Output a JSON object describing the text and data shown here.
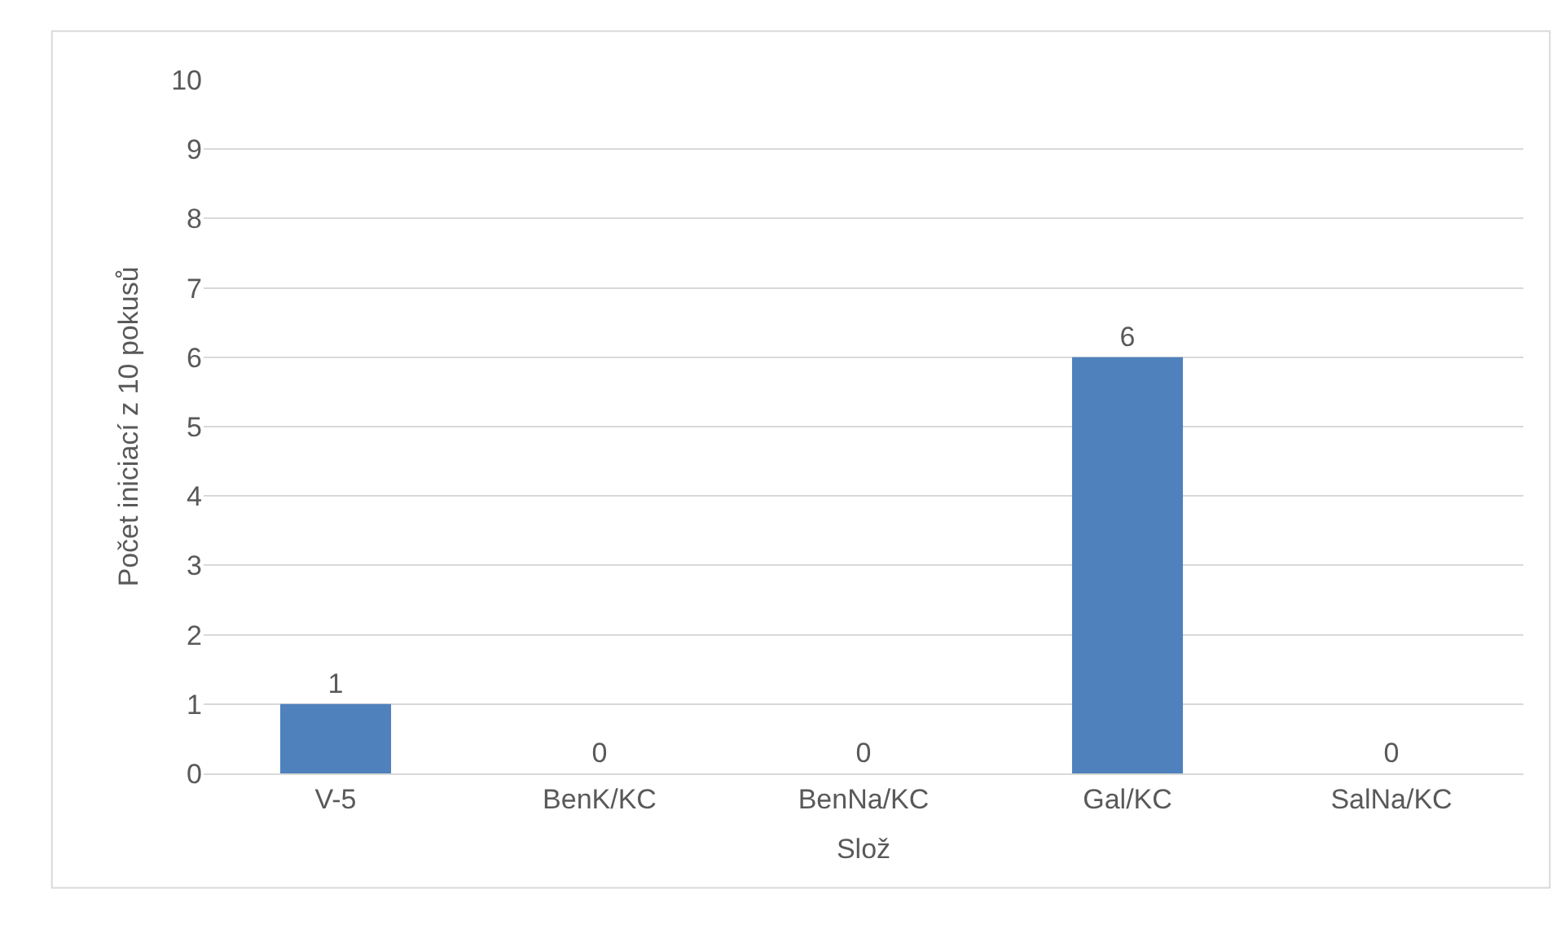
{
  "chart_data": {
    "type": "bar",
    "xlabel": "Slož",
    "ylabel": "Počet iniciací z 10 pokusů",
    "categories": [
      "V-5",
      "BenK/KC",
      "BenNa/KC",
      "Gal/KC",
      "SalNa/KC"
    ],
    "values": [
      1,
      0,
      0,
      6,
      0
    ],
    "color": "#4f81bd",
    "ylim": [
      0,
      10
    ],
    "yticks": [
      0,
      1,
      2,
      3,
      4,
      5,
      6,
      7,
      8,
      9,
      10
    ],
    "grid": "y",
    "data_labels": true
  }
}
